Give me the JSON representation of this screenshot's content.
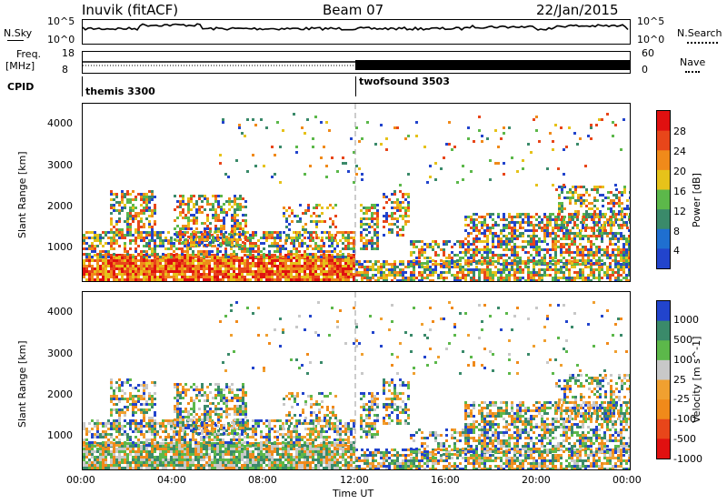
{
  "header": {
    "station": "Inuvik (fitACF)",
    "beam": "Beam 07",
    "date": "22/Jan/2015"
  },
  "top_panel": {
    "left_label": "N.Sky",
    "left_ticks": [
      "10^5",
      "10^0"
    ],
    "right_label": "N.Search",
    "right_ticks": [
      "10^5",
      "10^0"
    ]
  },
  "freq_panel": {
    "left_label": "Freq.",
    "left_unit": "[MHz]",
    "left_ticks": [
      "18",
      "8"
    ],
    "right_label": "Nave",
    "right_ticks": [
      "60",
      "0"
    ]
  },
  "cpid": {
    "label": "CPID",
    "modes": [
      {
        "name": "themis 3300",
        "start_hour": 0
      },
      {
        "name": "twofsound 3503",
        "start_hour": 12
      }
    ]
  },
  "x_axis": {
    "label": "Time UT",
    "ticks": [
      "00:00",
      "04:00",
      "08:00",
      "12:00",
      "16:00",
      "20:00",
      "00:00"
    ]
  },
  "colors": {
    "power": [
      "#2244cc",
      "#1f6fd0",
      "#3a8a6a",
      "#5cb84a",
      "#e6c21a",
      "#f08a1a",
      "#e8461a",
      "#e01010"
    ],
    "velocity": [
      "#e01010",
      "#e8461a",
      "#f08a1a",
      "#f0a030",
      "#c8c8c8",
      "#5cb84a",
      "#3a8a6a",
      "#2244cc"
    ]
  },
  "chart_data": [
    {
      "type": "heatmap",
      "panel": "power",
      "ylabel": "Slant Range [km]",
      "yticks": [
        "4000",
        "3000",
        "2000",
        "1000"
      ],
      "ylim": [
        200,
        4500
      ],
      "xlim": [
        0,
        24
      ],
      "colorbar_label": "Power [dB]",
      "colorbar_ticks": [
        "28",
        "24",
        "20",
        "16",
        "12",
        "8",
        "4"
      ]
    },
    {
      "type": "heatmap",
      "panel": "velocity",
      "ylabel": "Slant Range [km]",
      "yticks": [
        "4000",
        "3000",
        "2000",
        "1000"
      ],
      "ylim": [
        200,
        4500
      ],
      "xlim": [
        0,
        24
      ],
      "colorbar_label": "Velocity [m s^-1]",
      "colorbar_ticks": [
        "1000",
        "500",
        "100",
        "25",
        "-25",
        "-100",
        "-500",
        "-1000"
      ]
    }
  ]
}
